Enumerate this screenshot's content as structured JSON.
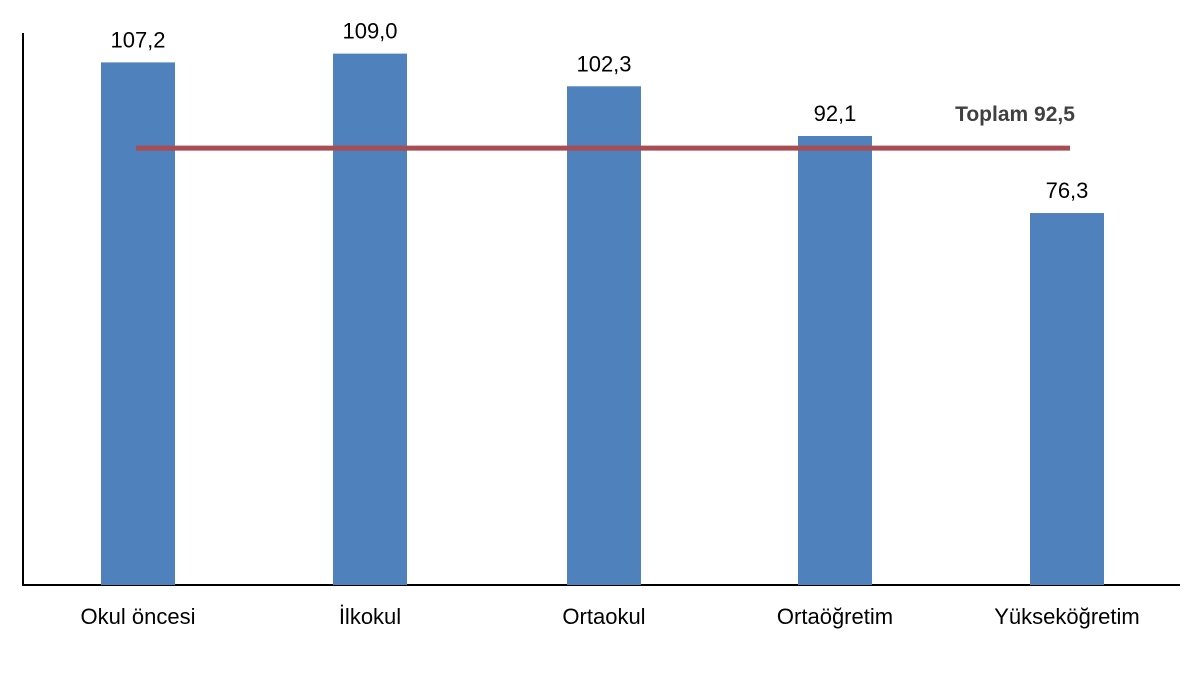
{
  "colors": {
    "bar": "#4f81bd",
    "reference_line": "#a84d53",
    "axis": "#000000",
    "background": "#ffffff"
  },
  "chart_data": {
    "type": "bar",
    "categories": [
      "Okul öncesi",
      "İlkokul",
      "Ortaokul",
      "Ortaöğretim",
      "Yükseköğretim"
    ],
    "values": [
      107.2,
      109.0,
      102.3,
      92.1,
      76.3
    ],
    "value_labels": [
      "107,2",
      "109,0",
      "102,3",
      "92,1",
      "76,3"
    ],
    "reference_line": {
      "value": 92.5,
      "label": "Toplam 92,5"
    },
    "title": "",
    "xlabel": "",
    "ylabel": "",
    "ylim": [
      0,
      120
    ],
    "grid": false,
    "legend": "none"
  }
}
